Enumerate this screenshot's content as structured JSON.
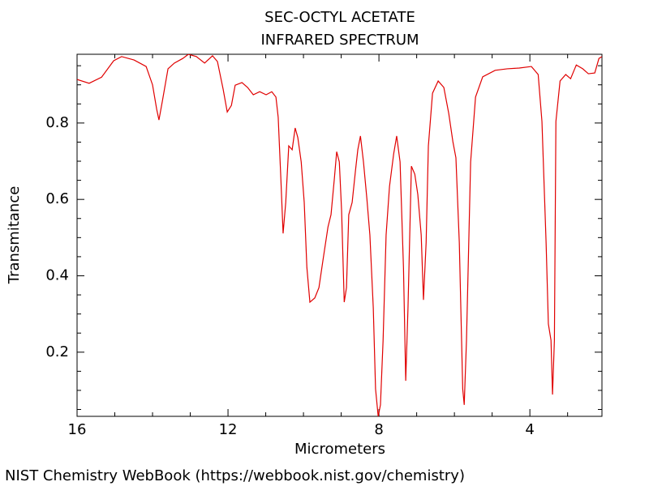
{
  "chart_data": {
    "type": "line",
    "title": "SEC-OCTYL ACETATE",
    "subtitle": "INFRARED SPECTRUM",
    "x_label": "Micrometers",
    "y_label": "Transmitance",
    "source": "NIST Chemistry WebBook (https://webbook.nist.gov/chemistry)",
    "color": "#e00000",
    "xlim": [
      16,
      2.09
    ],
    "ylim": [
      0.032,
      0.98
    ],
    "xticks": [
      16,
      12,
      8,
      4
    ],
    "yticks": [
      0.2,
      0.4,
      0.6,
      0.8
    ],
    "x_minor_ticks": [
      15,
      14,
      13,
      11,
      10,
      9,
      7,
      6,
      5,
      3
    ],
    "y_minor_ticks": [
      0.05,
      0.1,
      0.15,
      0.25,
      0.3,
      0.35,
      0.45,
      0.5,
      0.55,
      0.65,
      0.7,
      0.75,
      0.85,
      0.9,
      0.95
    ],
    "x": [
      16,
      15.68,
      15.35,
      15.03,
      14.82,
      14.49,
      14.17,
      14.0,
      13.89,
      13.83,
      13.74,
      13.59,
      13.42,
      13.2,
      13.05,
      12.84,
      12.62,
      12.41,
      12.28,
      12.13,
      12.02,
      11.91,
      11.81,
      11.63,
      11.48,
      11.33,
      11.16,
      10.99,
      10.84,
      10.73,
      10.67,
      10.6,
      10.54,
      10.47,
      10.39,
      10.3,
      10.22,
      10.15,
      10.06,
      9.98,
      9.91,
      9.83,
      9.7,
      9.59,
      9.48,
      9.35,
      9.27,
      9.18,
      9.12,
      9.05,
      8.99,
      8.92,
      8.86,
      8.8,
      8.71,
      8.62,
      8.56,
      8.49,
      8.41,
      8.32,
      8.24,
      8.15,
      8.09,
      8.02,
      7.96,
      7.89,
      7.81,
      7.72,
      7.61,
      7.53,
      7.44,
      7.35,
      7.29,
      7.23,
      7.14,
      7.05,
      6.97,
      6.88,
      6.82,
      6.75,
      6.69,
      6.58,
      6.43,
      6.28,
      6.15,
      6.04,
      5.96,
      5.87,
      5.78,
      5.74,
      5.68,
      5.57,
      5.44,
      5.25,
      4.92,
      4.6,
      4.28,
      3.96,
      3.78,
      3.68,
      3.57,
      3.51,
      3.44,
      3.4,
      3.35,
      3.31,
      3.2,
      3.05,
      2.92,
      2.77,
      2.6,
      2.45,
      2.28,
      2.17,
      2.09
    ],
    "values": [
      0.914,
      0.904,
      0.92,
      0.963,
      0.974,
      0.965,
      0.948,
      0.9,
      0.836,
      0.808,
      0.857,
      0.942,
      0.957,
      0.969,
      0.98,
      0.974,
      0.957,
      0.976,
      0.961,
      0.889,
      0.829,
      0.846,
      0.899,
      0.906,
      0.893,
      0.874,
      0.882,
      0.874,
      0.882,
      0.868,
      0.815,
      0.656,
      0.511,
      0.592,
      0.74,
      0.73,
      0.787,
      0.762,
      0.698,
      0.592,
      0.422,
      0.331,
      0.342,
      0.369,
      0.443,
      0.528,
      0.56,
      0.656,
      0.725,
      0.698,
      0.571,
      0.331,
      0.369,
      0.56,
      0.592,
      0.677,
      0.73,
      0.766,
      0.698,
      0.602,
      0.507,
      0.316,
      0.104,
      0.032,
      0.062,
      0.231,
      0.507,
      0.634,
      0.719,
      0.766,
      0.698,
      0.422,
      0.125,
      0.316,
      0.687,
      0.666,
      0.613,
      0.507,
      0.337,
      0.486,
      0.74,
      0.878,
      0.91,
      0.893,
      0.825,
      0.751,
      0.709,
      0.486,
      0.104,
      0.062,
      0.231,
      0.698,
      0.868,
      0.921,
      0.938,
      0.942,
      0.944,
      0.948,
      0.927,
      0.804,
      0.486,
      0.274,
      0.231,
      0.089,
      0.231,
      0.804,
      0.91,
      0.927,
      0.916,
      0.952,
      0.942,
      0.929,
      0.931,
      0.969,
      0.974
    ]
  }
}
